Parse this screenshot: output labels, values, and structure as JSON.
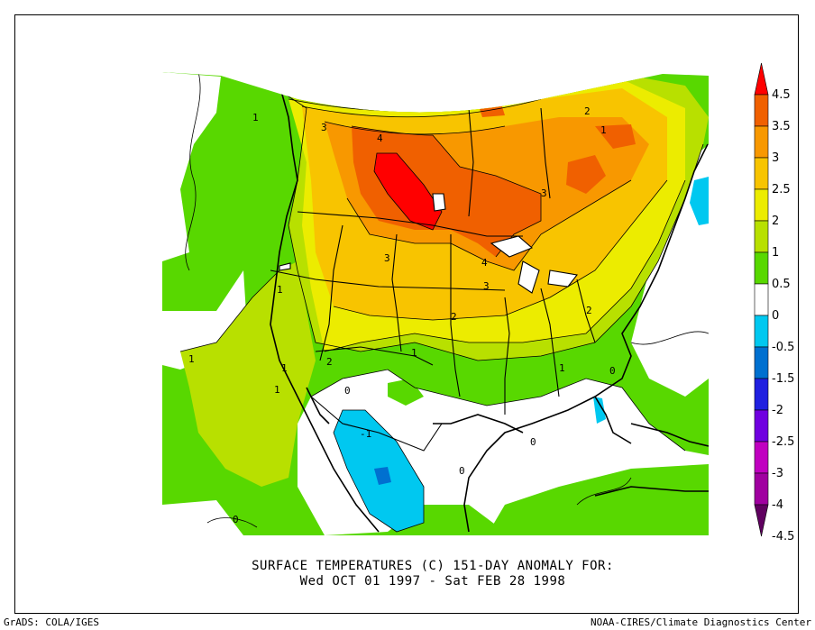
{
  "title": {
    "line1": "SURFACE TEMPERATURES (C)   151-DAY ANOMALY FOR:",
    "line2": "Wed OCT 01 1997 - Sat FEB 28 1998"
  },
  "credits": {
    "left": "GrADS: COLA/IGES",
    "right": "NOAA-CIRES/Climate Diagnostics Center"
  },
  "colorbar": {
    "bins": [
      {
        "range": "4.5+",
        "color": "#ff0000"
      },
      {
        "range": "3.5 to 4.5",
        "color": "#f06000"
      },
      {
        "range": "3 to 3.5",
        "color": "#f89800"
      },
      {
        "range": "2.5 to 3",
        "color": "#f8c400"
      },
      {
        "range": "2 to 2.5",
        "color": "#ecec00"
      },
      {
        "range": "1 to 2",
        "color": "#b8e000"
      },
      {
        "range": "0.5 to 1",
        "color": "#58d800"
      },
      {
        "range": "-0.5 to 0.5",
        "color": "#ffffff"
      },
      {
        "range": "-1.5 to -0.5",
        "color": "#00c8f0"
      },
      {
        "range": "-2 to -1.5",
        "color": "#0070d0"
      },
      {
        "range": "-2.5 to -2",
        "color": "#2020e0"
      },
      {
        "range": "-3 to -2.5",
        "color": "#7000e0"
      },
      {
        "range": "-4 to -3",
        "color": "#c000c0"
      },
      {
        "range": "-4.5 to -4",
        "color": "#a000a0"
      },
      {
        "range": "below -4.5",
        "color": "#600060"
      }
    ],
    "labels": [
      "4.5",
      "3.5",
      "3",
      "2.5",
      "2",
      "1",
      "0.5",
      "0",
      "-0.5",
      "-1.5",
      "-2",
      "-2.5",
      "-3",
      "-4",
      "-4.5"
    ]
  },
  "contour_labels": [
    "1",
    "3",
    "4",
    "2",
    "3",
    "3",
    "4",
    "3",
    "1",
    "2",
    "1",
    "2",
    "1",
    "1",
    "1",
    "1",
    "0",
    "0",
    "0",
    "0",
    "-1",
    "2",
    "0",
    "1"
  ]
}
